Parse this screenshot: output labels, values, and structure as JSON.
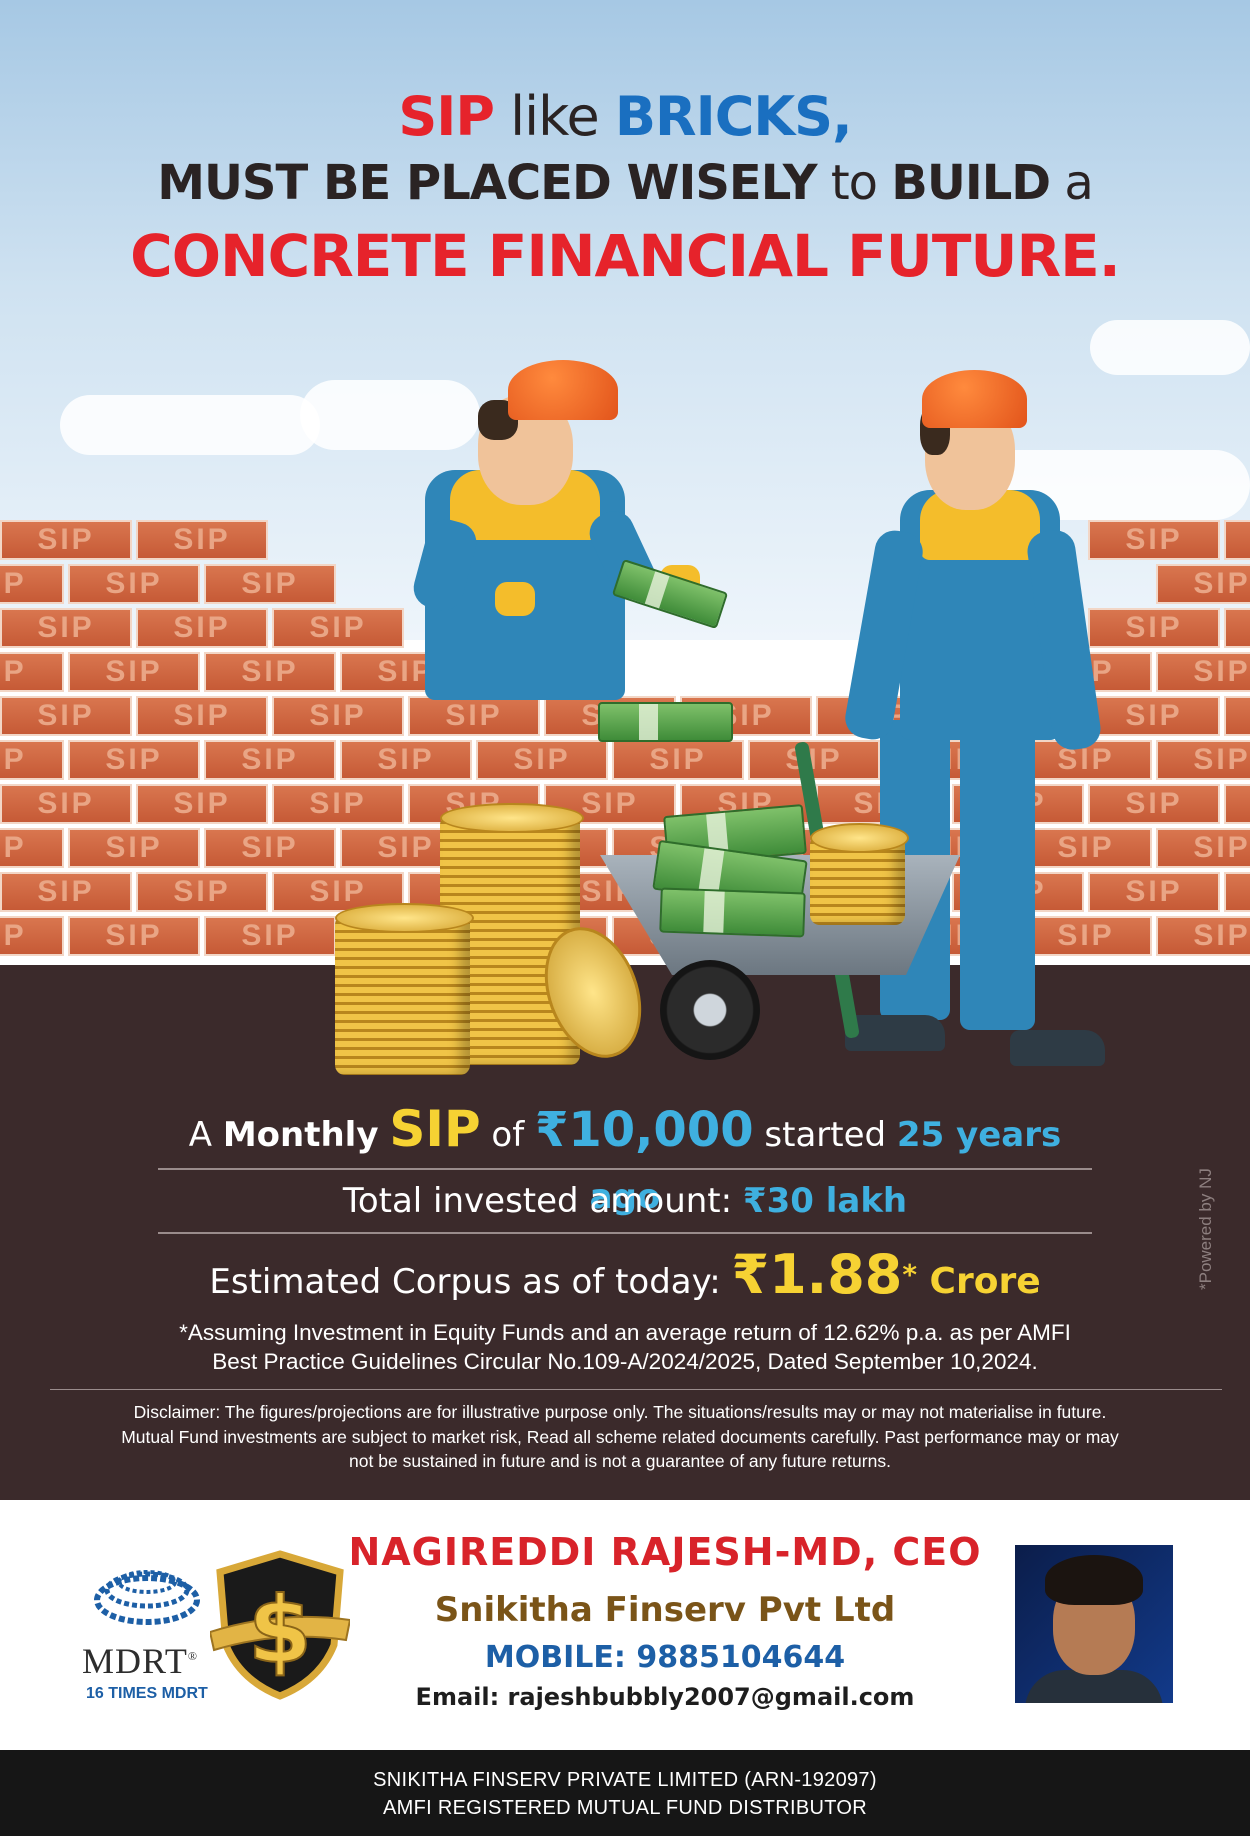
{
  "headline": {
    "line1": {
      "sip": "SIP",
      "like": " like ",
      "bricks": "BRICKS,"
    },
    "line2": {
      "a": "MUST BE PLACED WISELY",
      "b": " to ",
      "c": "BUILD",
      "d": " a"
    },
    "line3": "CONCRETE FINANCIAL FUTURE."
  },
  "brick_label": "SIP",
  "summary": {
    "monthly": {
      "a": "A ",
      "b": "Monthly",
      "c": " ",
      "sip": "SIP",
      "of": " of ",
      "amount": "₹10,000",
      "started": " started ",
      "years": "25 years ago"
    },
    "invested": {
      "label": "Total invested amount: ",
      "value": "₹30 lakh"
    },
    "corpus": {
      "label": "Estimated Corpus as of today: ",
      "value": "₹1.88",
      "star": "*",
      "unit": " Crore"
    }
  },
  "assumption": {
    "line1": "*Assuming Investment in Equity Funds and an average return of 12.62% p.a. as per AMFI",
    "line2": "Best Practice  Guidelines Circular No.109-A/2024/2025, Dated September 10,2024."
  },
  "disclaimer": {
    "line1": "Disclaimer: The figures/projections are for illustrative purpose only. The situations/results may or may not materialise in future.",
    "line2": "Mutual Fund investments are subject to market risk, Read all scheme related documents carefully. Past performance may or may",
    "line3": "not be sustained in future and is not a guarantee of any future returns."
  },
  "powered_by": "*Powered by NJ",
  "badge": {
    "name": "MDRT",
    "reg": "®",
    "subtitle": "16 TIMES MDRT",
    "shield_symbol": "$"
  },
  "contact": {
    "name": "NAGIREDDI RAJESH-MD, CEO",
    "company": "Snikitha Finserv Pvt Ltd",
    "mobile": "MOBILE: 9885104644",
    "email": "Email: rajeshbubbly2007@gmail.com"
  },
  "footer": {
    "line1": "SNIKITHA FINSERV PRIVATE LIMITED (ARN-192097)",
    "line2": "AMFI REGISTERED MUTUAL FUND DISTRIBUTOR"
  },
  "icons": [
    "mdrt-logo-icon",
    "dollar-shield-icon",
    "profile-photo"
  ],
  "colors": {
    "accent_red": "#e6232b",
    "accent_blue": "#1a6fc0",
    "ground": "#3b2a2b",
    "yellow": "#f6d233",
    "cyan": "#3fb0e0"
  }
}
